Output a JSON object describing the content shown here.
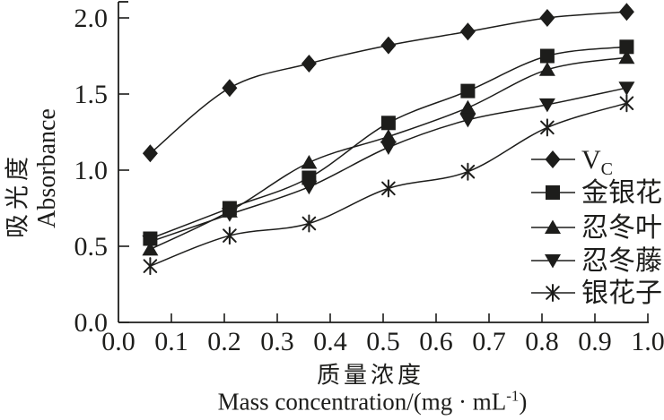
{
  "ylabel": {
    "zh": "吸光度",
    "en": "Absorbance"
  },
  "xlabel": {
    "zh": "质量浓度",
    "en_pre": "Mass concentration/(mg · mL",
    "en_sup": "-1",
    "en_post": ")"
  },
  "chart_data": {
    "type": "line",
    "title": "",
    "xlabel": "质量浓度 Mass concentration/(mg · mL-1)",
    "ylabel": "吸光度 Absorbance",
    "x": [
      0.06,
      0.21,
      0.36,
      0.51,
      0.66,
      0.81,
      0.96
    ],
    "series": [
      {
        "name": "Vc",
        "legend_label": "V",
        "legend_sub": "C",
        "marker": "diamond",
        "values": [
          1.11,
          1.54,
          1.7,
          1.82,
          1.91,
          2.0,
          2.04
        ]
      },
      {
        "name": "金银花",
        "legend_label": "金银花",
        "legend_sub": "",
        "marker": "square",
        "values": [
          0.55,
          0.75,
          0.95,
          1.31,
          1.52,
          1.75,
          1.81
        ]
      },
      {
        "name": "忍冬叶",
        "legend_label": "忍冬叶",
        "legend_sub": "",
        "marker": "triangle-up",
        "values": [
          0.48,
          0.73,
          1.05,
          1.22,
          1.41,
          1.66,
          1.74
        ]
      },
      {
        "name": "忍冬藤",
        "legend_label": "忍冬藤",
        "legend_sub": "",
        "marker": "triangle-down",
        "values": [
          0.53,
          0.71,
          0.89,
          1.15,
          1.33,
          1.43,
          1.54
        ]
      },
      {
        "name": "银花子",
        "legend_label": "银花子",
        "legend_sub": "",
        "marker": "asterisk",
        "values": [
          0.37,
          0.57,
          0.65,
          0.88,
          0.99,
          1.28,
          1.44
        ]
      }
    ],
    "xlim": [
      0.0,
      1.0
    ],
    "ylim": [
      0.0,
      2.0
    ],
    "xticks": [
      "0.0",
      "0.1",
      "0.2",
      "0.3",
      "0.4",
      "0.5",
      "0.6",
      "0.7",
      "0.8",
      "0.9",
      "1.0"
    ],
    "yticks": [
      "0.0",
      "0.5",
      "1.0",
      "1.5",
      "2.0"
    ],
    "grid": false,
    "legend_position": "inside-right",
    "ink_color": "#1d1d1b",
    "background": "#ffffff"
  }
}
